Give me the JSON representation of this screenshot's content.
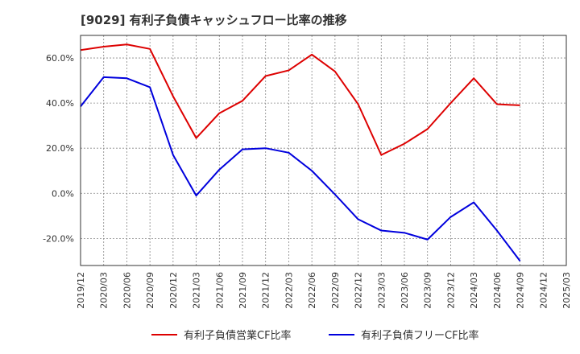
{
  "title": "[9029]  有利子負債キャッシュフロー比率の推移",
  "chart_data": {
    "type": "line",
    "title": "[9029]  有利子負債キャッシュフロー比率の推移",
    "x": [
      "2019/12",
      "2020/03",
      "2020/06",
      "2020/09",
      "2020/12",
      "2021/03",
      "2021/06",
      "2021/09",
      "2021/12",
      "2022/03",
      "2022/06",
      "2022/09",
      "2022/12",
      "2023/03",
      "2023/06",
      "2023/09",
      "2023/12",
      "2024/03",
      "2024/06",
      "2024/09",
      "2024/12",
      "2025/03"
    ],
    "ylim": [
      -32,
      70
    ],
    "yticks": [
      60,
      40,
      20,
      0,
      -20
    ],
    "ytick_labels": [
      "60.0%",
      "40.0%",
      "20.0%",
      "0.0%",
      "-20.0%"
    ],
    "grid": true,
    "legend_position": "bottom",
    "series": [
      {
        "name": "有利子負債営業CF比率",
        "color": "#dd0000",
        "values": [
          63.5,
          65,
          66,
          64,
          43,
          24.5,
          35.5,
          41,
          52,
          54.5,
          61.5,
          54,
          39.5,
          17,
          22,
          28.5,
          40,
          51,
          39.5,
          39,
          null,
          null
        ]
      },
      {
        "name": "有利子負債フリーCF比率",
        "color": "#0000dd",
        "values": [
          38.5,
          51.5,
          51,
          47,
          17,
          -1,
          10.5,
          19.5,
          20,
          18,
          10,
          -0.5,
          -11.5,
          -16.5,
          -17.5,
          -20.5,
          -10.5,
          -4,
          -16.5,
          -30,
          null,
          null
        ]
      }
    ]
  }
}
